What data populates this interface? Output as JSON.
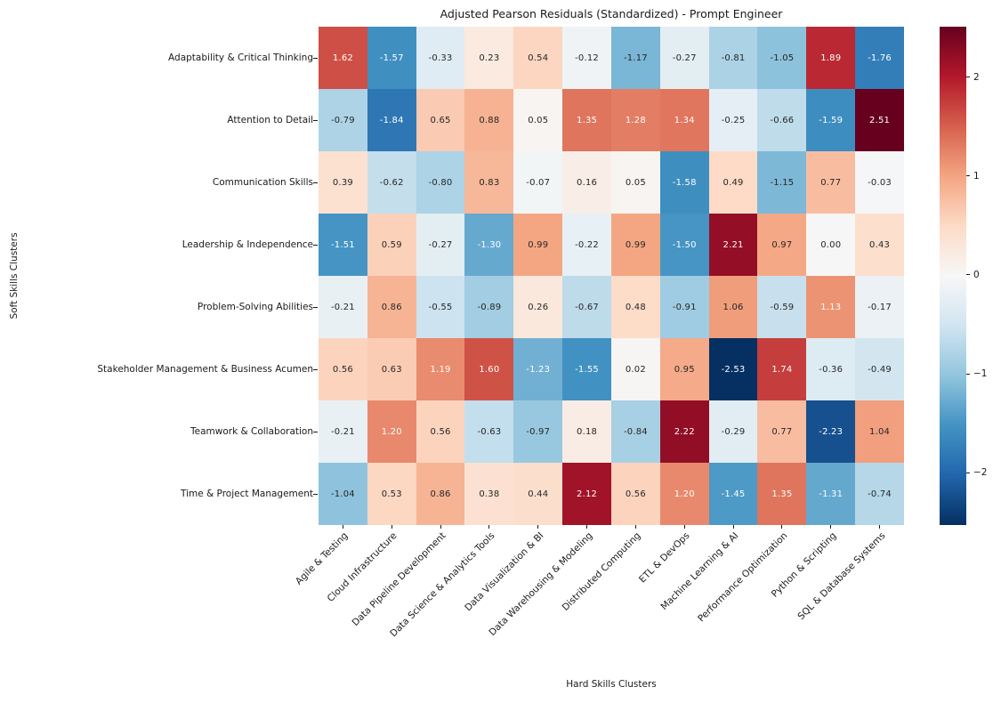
{
  "chart_data": {
    "type": "heatmap",
    "title": "Adjusted Pearson Residuals (Standardized) - Prompt Engineer",
    "xlabel": "Hard Skills Clusters",
    "ylabel": "Soft Skills Clusters",
    "columns": [
      "Agile & Testing",
      "Cloud Infrastructure",
      "Data Pipeline Development",
      "Data Science & Analytics Tools",
      "Data Visualization & BI",
      "Data Warehousing & Modeling",
      "Distributed Computing",
      "ETL & DevOps",
      "Machine Learning & AI",
      "Performance Optimization",
      "Python & Scripting",
      "SQL & Database Systems"
    ],
    "rows": [
      "Adaptability & Critical Thinking",
      "Attention to Detail",
      "Communication Skills",
      "Leadership & Independence",
      "Problem-Solving Abilities",
      "Stakeholder Management & Business Acumen",
      "Teamwork & Collaboration",
      "Time & Project Management"
    ],
    "values": [
      [
        1.62,
        -1.57,
        -0.33,
        0.23,
        0.54,
        -0.12,
        -1.17,
        -0.27,
        -0.81,
        -1.05,
        1.89,
        -1.76
      ],
      [
        -0.79,
        -1.84,
        0.65,
        0.88,
        0.05,
        1.35,
        1.28,
        1.34,
        -0.25,
        -0.66,
        -1.59,
        2.51
      ],
      [
        0.39,
        -0.62,
        -0.8,
        0.83,
        -0.07,
        0.16,
        0.05,
        -1.58,
        0.49,
        -1.15,
        0.77,
        -0.03
      ],
      [
        -1.51,
        0.59,
        -0.27,
        -1.3,
        0.99,
        -0.22,
        0.99,
        -1.5,
        2.21,
        0.97,
        0.0,
        0.43
      ],
      [
        -0.21,
        0.86,
        -0.55,
        -0.89,
        0.26,
        -0.67,
        0.48,
        -0.91,
        1.06,
        -0.59,
        1.13,
        -0.17
      ],
      [
        0.56,
        0.63,
        1.19,
        1.6,
        -1.23,
        -1.55,
        0.02,
        0.95,
        -2.53,
        1.74,
        -0.36,
        -0.49
      ],
      [
        -0.21,
        1.2,
        0.56,
        -0.63,
        -0.97,
        0.18,
        -0.84,
        2.22,
        -0.29,
        0.77,
        -2.23,
        1.04
      ],
      [
        -1.04,
        0.53,
        0.86,
        0.38,
        0.44,
        2.12,
        0.56,
        1.2,
        -1.45,
        1.35,
        -1.31,
        -0.74
      ]
    ],
    "vmin": -2.53,
    "vmax": 2.51,
    "colormap": "RdBu_r",
    "colormap_stops": [
      "#053061",
      "#2166ac",
      "#4393c3",
      "#92c5de",
      "#d1e5f0",
      "#f7f7f7",
      "#fddbc7",
      "#f4a582",
      "#d6604d",
      "#b2182b",
      "#67001f"
    ],
    "annot_decimals": 2,
    "annot_color_dark": "#262626",
    "annot_color_light": "#ffffff",
    "colorbar": {
      "tick_values": [
        2,
        1,
        0,
        -1,
        -2
      ],
      "tick_labels": [
        "2",
        "1",
        "0",
        "−1",
        "−2"
      ],
      "position": "right"
    },
    "grid": false,
    "background": "#ffffff"
  }
}
